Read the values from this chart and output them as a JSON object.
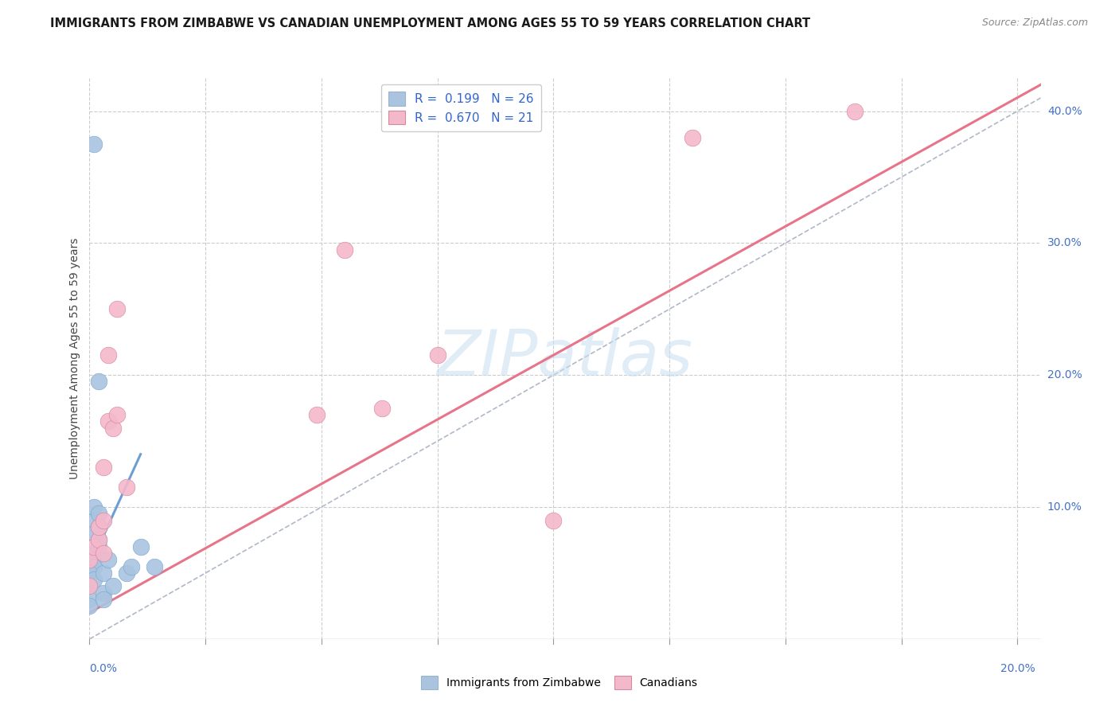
{
  "title": "IMMIGRANTS FROM ZIMBABWE VS CANADIAN UNEMPLOYMENT AMONG AGES 55 TO 59 YEARS CORRELATION CHART",
  "source": "Source: ZipAtlas.com",
  "ylabel": "Unemployment Among Ages 55 to 59 years",
  "color_blue": "#aac4e0",
  "color_pink": "#f4b8cb",
  "color_blue_line": "#6b9fd4",
  "color_pink_line": "#e8748a",
  "color_diag": "#b0b8c8",
  "watermark_text": "ZIPatlas",
  "watermark_color": "#c8dff0",
  "xmin": 0.0,
  "xmax": 0.205,
  "ymin": 0.0,
  "ymax": 0.425,
  "xtick_vals": [
    0.0,
    0.025,
    0.05,
    0.075,
    0.1,
    0.125,
    0.15,
    0.175,
    0.2
  ],
  "ytick_vals": [
    0.0,
    0.1,
    0.2,
    0.3,
    0.4
  ],
  "right_ytick_labels": [
    "10.0%",
    "20.0%",
    "30.0%",
    "40.0%"
  ],
  "right_ytick_vals": [
    0.1,
    0.2,
    0.3,
    0.4
  ],
  "blue_scatter_x": [
    0.001,
    0.002,
    0.001,
    0.001,
    0.001,
    0.002,
    0.002,
    0.001,
    0.001,
    0.002,
    0.0,
    0.0,
    0.0,
    0.0,
    0.001,
    0.001,
    0.002,
    0.003,
    0.003,
    0.004,
    0.005,
    0.008,
    0.009,
    0.011,
    0.014,
    0.003
  ],
  "blue_scatter_y": [
    0.375,
    0.195,
    0.09,
    0.08,
    0.065,
    0.07,
    0.075,
    0.06,
    0.055,
    0.085,
    0.04,
    0.05,
    0.03,
    0.025,
    0.045,
    0.1,
    0.095,
    0.05,
    0.035,
    0.06,
    0.04,
    0.05,
    0.055,
    0.07,
    0.055,
    0.03
  ],
  "pink_scatter_x": [
    0.0,
    0.0,
    0.001,
    0.002,
    0.002,
    0.003,
    0.003,
    0.003,
    0.004,
    0.004,
    0.005,
    0.006,
    0.006,
    0.008,
    0.049,
    0.055,
    0.063,
    0.075,
    0.1,
    0.13,
    0.165
  ],
  "pink_scatter_y": [
    0.04,
    0.06,
    0.07,
    0.075,
    0.085,
    0.065,
    0.09,
    0.13,
    0.165,
    0.215,
    0.16,
    0.17,
    0.25,
    0.115,
    0.17,
    0.295,
    0.175,
    0.215,
    0.09,
    0.38,
    0.4
  ],
  "blue_line_x": [
    0.0,
    0.011
  ],
  "blue_line_y": [
    0.055,
    0.14
  ],
  "pink_line_x": [
    0.0,
    0.205
  ],
  "pink_line_y": [
    0.02,
    0.42
  ],
  "diag_line_x": [
    0.0,
    0.205
  ],
  "diag_line_y": [
    0.0,
    0.41
  ]
}
